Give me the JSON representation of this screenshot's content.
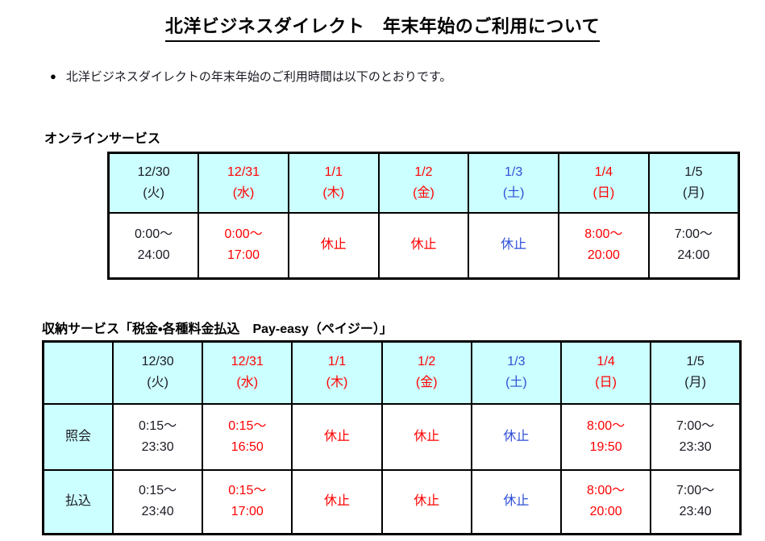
{
  "page": {
    "title": "北洋ビジネスダイレクト　年末年始のご利用について",
    "bullet": "●",
    "intro": "北洋ビジネスダイレクトの年末年始のご利用時間は以下のとおりです。"
  },
  "colors": {
    "black": "#1a1a24",
    "red": "#ff0000",
    "blue": "#2e4fd6",
    "header_bg": "#ccffff",
    "border": "#000000"
  },
  "schedule_columns": [
    {
      "date": "12/30",
      "day": "(火)",
      "color": "black"
    },
    {
      "date": "12/31",
      "day": "(水)",
      "color": "red"
    },
    {
      "date": "1/1",
      "day": "(木)",
      "color": "red"
    },
    {
      "date": "1/2",
      "day": "(金)",
      "color": "red"
    },
    {
      "date": "1/3",
      "day": "(土)",
      "color": "blue"
    },
    {
      "date": "1/4",
      "day": "(日)",
      "color": "red"
    },
    {
      "date": "1/5",
      "day": "(月)",
      "color": "black"
    }
  ],
  "online_table": {
    "heading": "オンラインサービス",
    "cells": [
      {
        "lines": [
          "0:00～",
          "24:00"
        ],
        "color": "black"
      },
      {
        "lines": [
          "0:00～",
          "17:00"
        ],
        "color": "red"
      },
      {
        "lines": [
          "休止"
        ],
        "color": "red"
      },
      {
        "lines": [
          "休止"
        ],
        "color": "red"
      },
      {
        "lines": [
          "休止"
        ],
        "color": "blue"
      },
      {
        "lines": [
          "8:00～",
          "20:00"
        ],
        "color": "red"
      },
      {
        "lines": [
          "7:00～",
          "24:00"
        ],
        "color": "black"
      }
    ]
  },
  "payeasy_table": {
    "heading": "収納サービス「税金・各種料金払込　Pay-easy（ペイジー）」",
    "rows": [
      {
        "label": "照会",
        "cells": [
          {
            "lines": [
              "0:15～",
              "23:30"
            ],
            "color": "black"
          },
          {
            "lines": [
              "0:15～",
              "16:50"
            ],
            "color": "red"
          },
          {
            "lines": [
              "休止"
            ],
            "color": "red"
          },
          {
            "lines": [
              "休止"
            ],
            "color": "red"
          },
          {
            "lines": [
              "休止"
            ],
            "color": "blue"
          },
          {
            "lines": [
              "8:00～",
              "19:50"
            ],
            "color": "red"
          },
          {
            "lines": [
              "7:00～",
              "23:30"
            ],
            "color": "black"
          }
        ]
      },
      {
        "label": "払込",
        "cells": [
          {
            "lines": [
              "0:15～",
              "23:40"
            ],
            "color": "black"
          },
          {
            "lines": [
              "0:15～",
              "17:00"
            ],
            "color": "red"
          },
          {
            "lines": [
              "休止"
            ],
            "color": "red"
          },
          {
            "lines": [
              "休止"
            ],
            "color": "red"
          },
          {
            "lines": [
              "休止"
            ],
            "color": "blue"
          },
          {
            "lines": [
              "8:00～",
              "20:00"
            ],
            "color": "red"
          },
          {
            "lines": [
              "7:00～",
              "23:40"
            ],
            "color": "black"
          }
        ]
      }
    ]
  }
}
